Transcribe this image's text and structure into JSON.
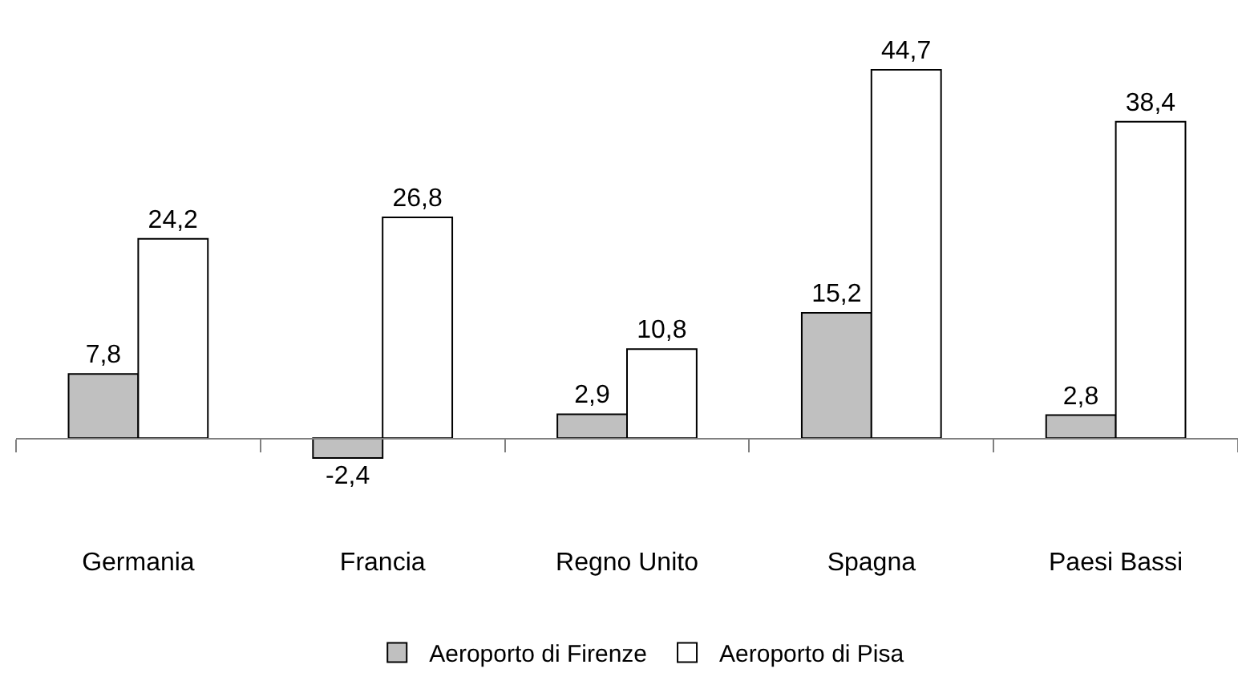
{
  "chart_data": {
    "type": "bar",
    "categories": [
      "Germania",
      "Francia",
      "Regno Unito",
      "Spagna",
      "Paesi Bassi"
    ],
    "series": [
      {
        "name": "Aeroporto di Firenze",
        "color": "#c0c0c0",
        "values": [
          7.8,
          -2.4,
          2.9,
          15.2,
          2.8
        ],
        "value_labels": [
          "7,8",
          "-2,4",
          "2,9",
          "15,2",
          "2,8"
        ]
      },
      {
        "name": "Aeroporto di Pisa",
        "color": "#ffffff",
        "values": [
          24.2,
          26.8,
          10.8,
          44.7,
          38.4
        ],
        "value_labels": [
          "24,2",
          "26,8",
          "10,8",
          "44,7",
          "38,4"
        ]
      }
    ],
    "legend": "bottom"
  }
}
